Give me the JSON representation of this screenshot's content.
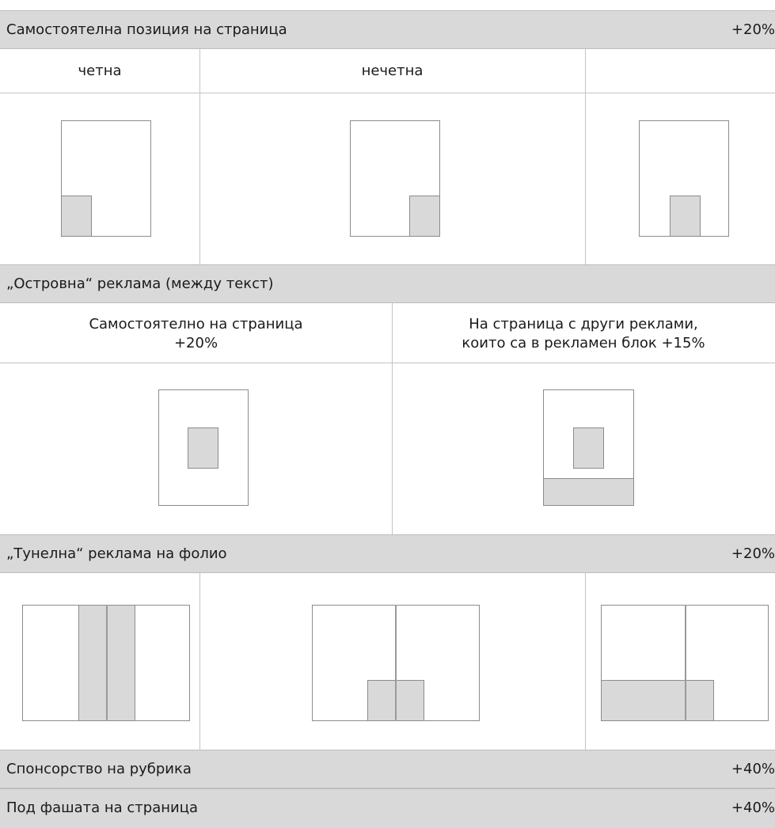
{
  "sections": {
    "standalone": {
      "title": "Самостоятелна позиция на страница",
      "surcharge": "+20%"
    },
    "island": {
      "title": "„Островна“ реклама (между текст)"
    },
    "tunnel": {
      "title": "„Тунелна“ реклама на фолио",
      "surcharge": "+20%"
    },
    "sponsorship": {
      "title": "Спонсорство на рубрика",
      "surcharge": "+40%"
    },
    "under_band": {
      "title": "Под фашата на страница",
      "surcharge": "+40%"
    }
  },
  "columns": {
    "even": "четна",
    "odd": "нечетна"
  },
  "island_columns": {
    "standalone_line1": "Самостоятелно на страница",
    "standalone_line2": "+20%",
    "with_others_line1": "На страница с други реклами,",
    "with_others_line2": "които са в рекламен блок +15%"
  },
  "colors": {
    "header_bg": "#d9d9d9",
    "ad_fill": "#d9d9d9",
    "page_border": "#8c8c8c",
    "grid_line": "#c4c4c4"
  }
}
